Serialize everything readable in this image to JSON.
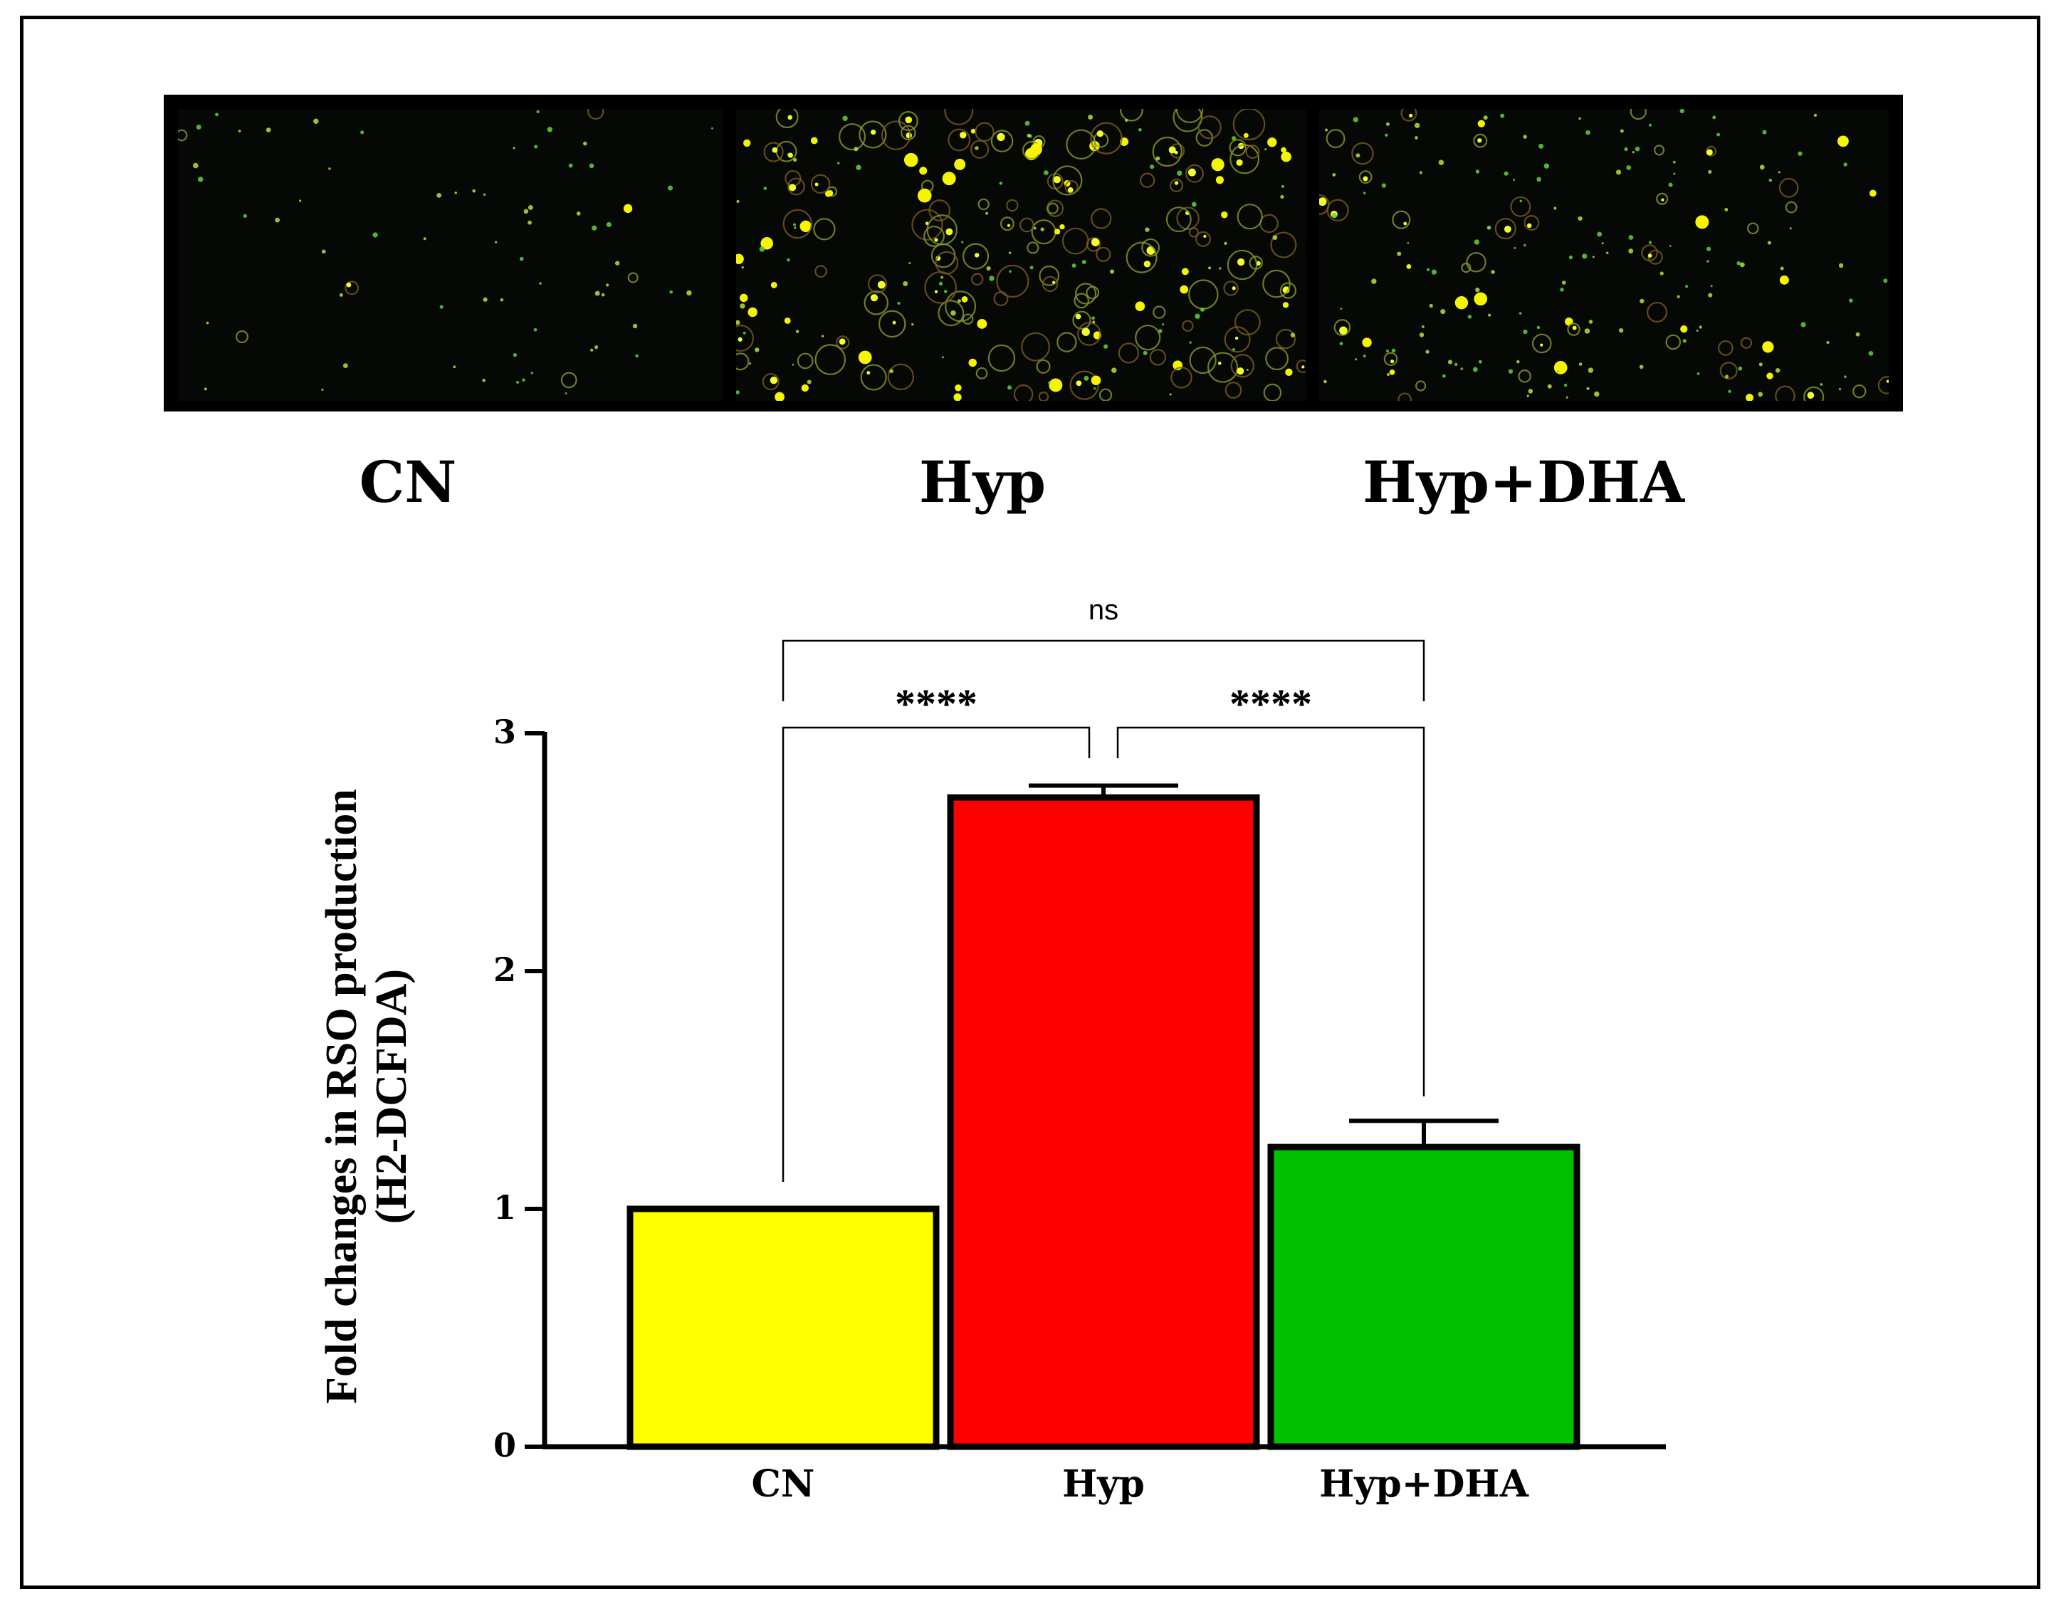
{
  "micrographs": {
    "labels": [
      "CN",
      "Hyp",
      "Hyp+DHA"
    ]
  },
  "chart_data": {
    "type": "bar",
    "categories": [
      "CN",
      "Hyp",
      "Hyp+DHA"
    ],
    "values": [
      1.0,
      2.73,
      1.26
    ],
    "error": [
      0.0,
      0.05,
      0.11
    ],
    "colors": [
      "#ffff00",
      "#ff0000",
      "#00c000"
    ],
    "ylabel": [
      "Fold changes in RSO production",
      "(H2-DCFDA)"
    ],
    "xlabel": "",
    "ylim": [
      0,
      3
    ],
    "yticks": [
      "0",
      "1",
      "2",
      "3"
    ],
    "grid": false,
    "significance": [
      {
        "from": "CN",
        "to": "Hyp",
        "label": "****"
      },
      {
        "from": "Hyp",
        "to": "Hyp+DHA",
        "label": "****"
      },
      {
        "from": "CN",
        "to": "Hyp+DHA",
        "label": "ns"
      }
    ]
  }
}
